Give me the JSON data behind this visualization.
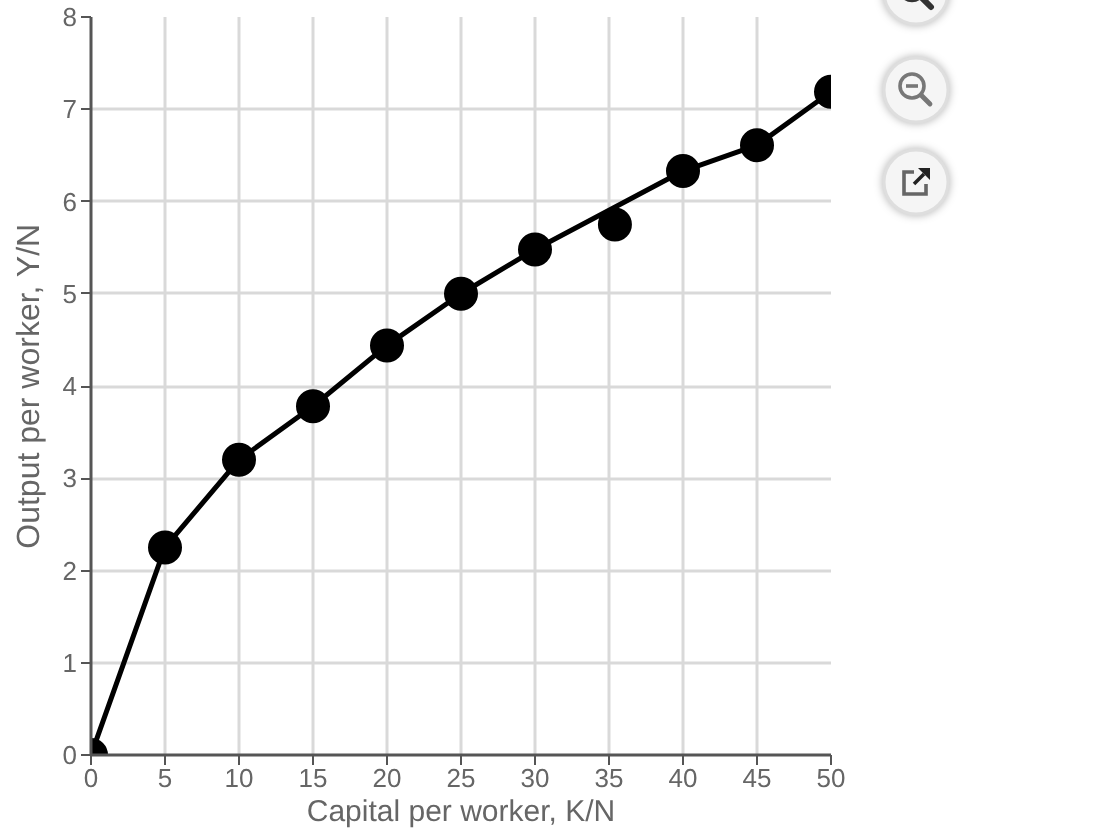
{
  "chart_data": {
    "type": "line",
    "xlabel": "Capital per worker, K/N",
    "ylabel": "Output per worker, Y/N",
    "xlim": [
      0,
      50
    ],
    "ylim": [
      0,
      8
    ],
    "xticks": [
      0,
      5,
      10,
      15,
      20,
      25,
      30,
      35,
      40,
      45,
      50
    ],
    "yticks": [
      0,
      1,
      2,
      3,
      4,
      5,
      6,
      7,
      8
    ],
    "grid": true,
    "series": [
      {
        "color": "#000000",
        "marker": "none",
        "x": [
          0,
          5,
          10,
          15,
          20,
          25,
          30,
          40,
          45,
          50
        ],
        "values": [
          0,
          2.25,
          3.2,
          3.78,
          4.44,
          5.0,
          5.48,
          6.33,
          6.61,
          7.19
        ]
      },
      {
        "type": "scatter",
        "color": "#000000",
        "marker": "circle",
        "x": [
          0,
          5,
          10,
          15,
          20,
          25,
          30,
          35.4,
          40,
          45,
          50
        ],
        "values": [
          0,
          2.25,
          3.2,
          3.78,
          4.44,
          5.0,
          5.48,
          5.75,
          6.33,
          6.61,
          7.19
        ]
      }
    ]
  }
}
